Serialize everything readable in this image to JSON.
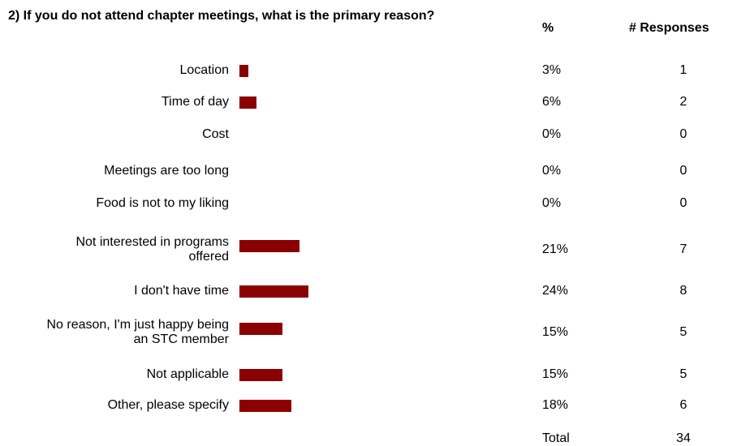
{
  "chart_data": {
    "type": "bar",
    "title": "2) If you do not attend chapter meetings, what is the primary reason?",
    "categories": [
      "Location",
      "Time of day",
      "Cost",
      "Meetings are too long",
      "Food is not to my liking",
      "Not interested in programs offered",
      "I don't have time",
      "No reason, I'm just happy being an STC member",
      "Not applicable",
      "Other, please specify"
    ],
    "series": [
      {
        "name": "%",
        "color": "#8b0000",
        "values": [
          3,
          6,
          0,
          0,
          0,
          21,
          24,
          15,
          15,
          18
        ],
        "value_labels": [
          "3%",
          "6%",
          "0%",
          "0%",
          "0%",
          "21%",
          "24%",
          "15%",
          "15%",
          "18%"
        ]
      },
      {
        "name": "# Responses",
        "values": [
          1,
          2,
          0,
          0,
          0,
          7,
          8,
          5,
          5,
          6
        ]
      }
    ],
    "total_label": "Total",
    "total": 34
  }
}
